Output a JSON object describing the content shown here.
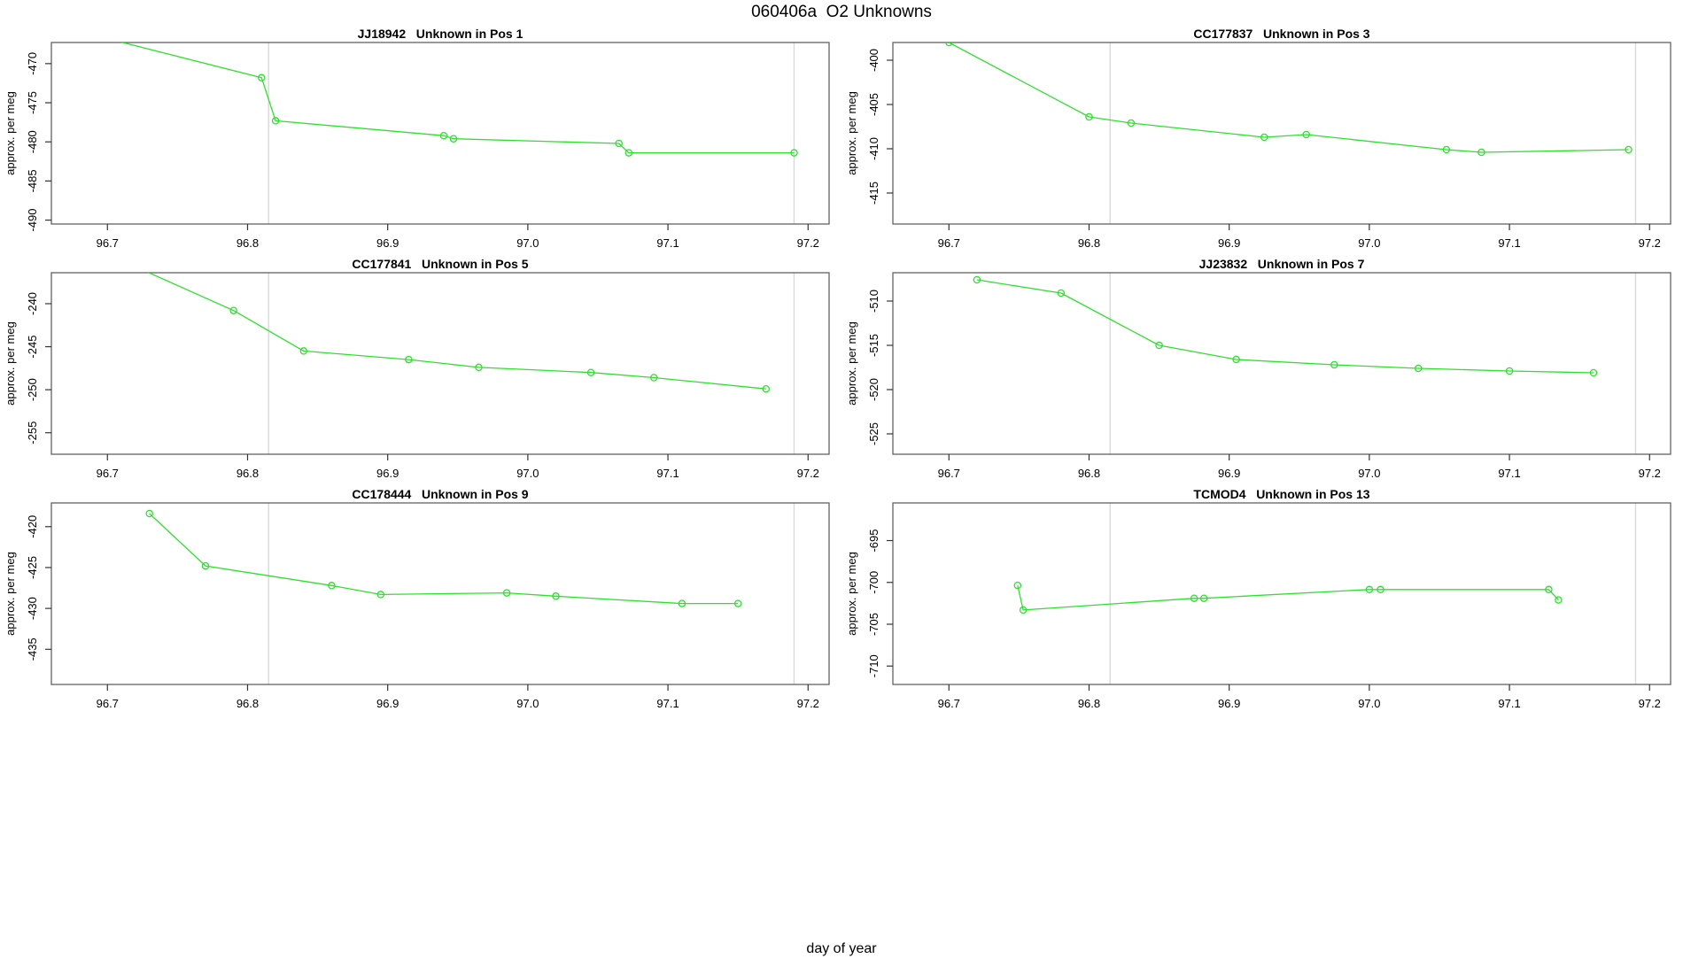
{
  "title": "060406a  O2 Unknowns",
  "xlabel": "day of year",
  "colors": {
    "line": "#2ee02e",
    "frame": "#555555",
    "tick": "#333333",
    "gridline": "#d9d9d9",
    "text": "#000000"
  },
  "chart_data": [
    {
      "type": "line",
      "title": "JJ18942   Unknown in Pos 1",
      "ylabel": "approx. per meg",
      "xlim": [
        96.66,
        97.215
      ],
      "ylim": [
        -490.5,
        -467.3
      ],
      "x_ticks": [
        96.7,
        96.8,
        96.9,
        97.0,
        97.1,
        97.2
      ],
      "y_ticks": [
        -490,
        -485,
        -480,
        -475,
        -470
      ],
      "gridlines_x": [
        96.815,
        97.19
      ],
      "points": [
        [
          96.7,
          -466.8
        ],
        [
          96.81,
          -471.8
        ],
        [
          96.82,
          -477.3
        ],
        [
          96.94,
          -479.2
        ],
        [
          96.947,
          -479.6
        ],
        [
          97.065,
          -480.2
        ],
        [
          97.072,
          -481.4
        ],
        [
          97.19,
          -481.4
        ]
      ]
    },
    {
      "type": "line",
      "title": "CC177837   Unknown in Pos 3",
      "ylabel": "approx. per meg",
      "xlim": [
        96.66,
        97.215
      ],
      "ylim": [
        -418.5,
        -398.0
      ],
      "x_ticks": [
        96.7,
        96.8,
        96.9,
        97.0,
        97.1,
        97.2
      ],
      "y_ticks": [
        -415,
        -410,
        -405,
        -400
      ],
      "gridlines_x": [
        96.815,
        97.19
      ],
      "points": [
        [
          96.7,
          -398.0
        ],
        [
          96.8,
          -406.4
        ],
        [
          96.83,
          -407.1
        ],
        [
          96.925,
          -408.7
        ],
        [
          96.955,
          -408.4
        ],
        [
          97.055,
          -410.1
        ],
        [
          97.08,
          -410.4
        ],
        [
          97.185,
          -410.1
        ]
      ]
    },
    {
      "type": "line",
      "title": "CC177841   Unknown in Pos 5",
      "ylabel": "approx. per meg",
      "xlim": [
        96.66,
        97.215
      ],
      "ylim": [
        -257.5,
        -236.4
      ],
      "x_ticks": [
        96.7,
        96.8,
        96.9,
        97.0,
        97.1,
        97.2
      ],
      "y_ticks": [
        -255,
        -250,
        -245,
        -240
      ],
      "gridlines_x": [
        96.815,
        97.19
      ],
      "points": [
        [
          96.72,
          -235.7
        ],
        [
          96.79,
          -240.8
        ],
        [
          96.84,
          -245.5
        ],
        [
          96.915,
          -246.5
        ],
        [
          96.965,
          -247.4
        ],
        [
          97.045,
          -248.0
        ],
        [
          97.09,
          -248.6
        ],
        [
          97.17,
          -249.9
        ]
      ]
    },
    {
      "type": "line",
      "title": "JJ23832   Unknown in Pos 7",
      "ylabel": "approx. per meg",
      "xlim": [
        96.66,
        97.215
      ],
      "ylim": [
        -527.3,
        -506.8
      ],
      "x_ticks": [
        96.7,
        96.8,
        96.9,
        97.0,
        97.1,
        97.2
      ],
      "y_ticks": [
        -525,
        -520,
        -515,
        -510
      ],
      "gridlines_x": [
        96.815,
        97.19
      ],
      "points": [
        [
          96.72,
          -507.6
        ],
        [
          96.78,
          -509.1
        ],
        [
          96.85,
          -515.0
        ],
        [
          96.905,
          -516.6
        ],
        [
          96.975,
          -517.2
        ],
        [
          97.035,
          -517.6
        ],
        [
          97.1,
          -517.9
        ],
        [
          97.16,
          -518.1
        ]
      ]
    },
    {
      "type": "line",
      "title": "CC178444   Unknown in Pos 9",
      "ylabel": "approx. per meg",
      "xlim": [
        96.66,
        97.215
      ],
      "ylim": [
        -439.3,
        -417.1
      ],
      "x_ticks": [
        96.7,
        96.8,
        96.9,
        97.0,
        97.1,
        97.2
      ],
      "y_ticks": [
        -435,
        -430,
        -425,
        -420
      ],
      "gridlines_x": [
        96.815,
        97.19
      ],
      "points": [
        [
          96.73,
          -418.4
        ],
        [
          96.77,
          -424.8
        ],
        [
          96.86,
          -427.2
        ],
        [
          96.895,
          -428.3
        ],
        [
          96.985,
          -428.1
        ],
        [
          97.02,
          -428.5
        ],
        [
          97.11,
          -429.4
        ],
        [
          97.15,
          -429.4
        ]
      ]
    },
    {
      "type": "line",
      "title": "TCMOD4   Unknown in Pos 13",
      "ylabel": "approx. per meg",
      "xlim": [
        96.66,
        97.215
      ],
      "ylim": [
        -712.2,
        -690.5
      ],
      "x_ticks": [
        96.7,
        96.8,
        96.9,
        97.0,
        97.1,
        97.2
      ],
      "y_ticks": [
        -710,
        -705,
        -700,
        -695
      ],
      "gridlines_x": [
        96.815,
        97.19
      ],
      "points": [
        [
          96.749,
          -700.35
        ],
        [
          96.753,
          -703.3
        ],
        [
          96.875,
          -701.9
        ],
        [
          96.882,
          -701.9
        ],
        [
          97.0,
          -700.85
        ],
        [
          97.008,
          -700.85
        ],
        [
          97.128,
          -700.85
        ],
        [
          97.135,
          -702.1
        ]
      ]
    }
  ]
}
